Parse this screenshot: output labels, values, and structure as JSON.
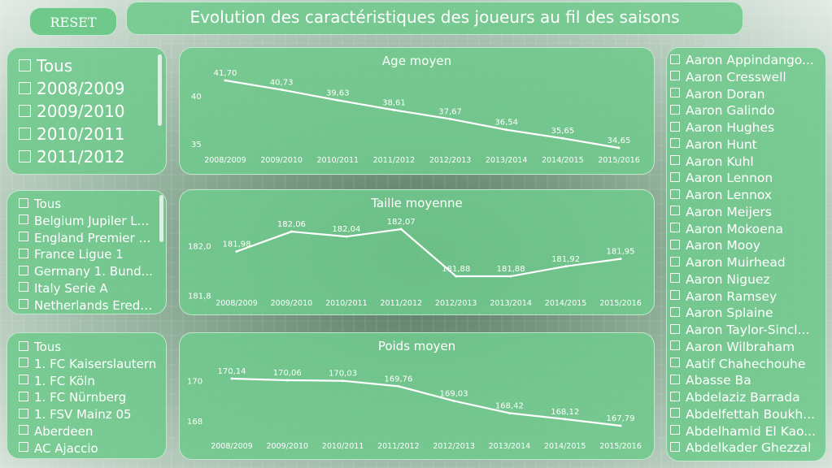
{
  "reset_label": "RESET",
  "title": "Evolution des caractéristiques des joueurs au fil des saisons",
  "seasons": [
    "Tous",
    "2008/2009",
    "2009/2010",
    "2010/2011",
    "2011/2012"
  ],
  "leagues": [
    "Tous",
    "Belgium Jupiler Le...",
    "England Premier L...",
    "France Ligue 1",
    "Germany 1. Bund...",
    "Italy Serie A",
    "Netherlands Eredi..."
  ],
  "clubs": [
    "Tous",
    "1. FC Kaiserslautern",
    "1. FC Köln",
    "1. FC Nürnberg",
    "1. FSV Mainz 05",
    "Aberdeen",
    "AC Ajaccio"
  ],
  "players": [
    "Aaron Appindango...",
    "Aaron Cresswell",
    "Aaron Doran",
    "Aaron Galindo",
    "Aaron Hughes",
    "Aaron Hunt",
    "Aaron Kuhl",
    "Aaron Lennon",
    "Aaron Lennox",
    "Aaron Meijers",
    "Aaron Mokoena",
    "Aaron Mooy",
    "Aaron Muirhead",
    "Aaron Niguez",
    "Aaron Ramsey",
    "Aaron Splaine",
    "Aaron Taylor-Sincl...",
    "Aaron Wilbraham",
    "Aatif Chahechouhe",
    "Abasse Ba",
    "Abdelaziz Barrada",
    "Abdelfettah Boukh...",
    "Abdelhamid El Kao...",
    "Abdelkader Ghezzal"
  ],
  "colors": {
    "panel": "#70c98c",
    "line": "#ffffff"
  },
  "chart_data": [
    {
      "type": "line",
      "title": "Age moyen",
      "categories": [
        "2008/2009",
        "2009/2010",
        "2010/2011",
        "2011/2012",
        "2012/2013",
        "2013/2014",
        "2014/2015",
        "2015/2016"
      ],
      "values": [
        41.7,
        40.73,
        39.63,
        38.61,
        37.67,
        36.54,
        35.65,
        34.65
      ],
      "labels": [
        "41,70",
        "40,73",
        "39,63",
        "38,61",
        "37,67",
        "36,54",
        "35,65",
        "34,65"
      ],
      "yticks": [
        "40",
        "35"
      ],
      "ytick_values": [
        40,
        35
      ],
      "grid": false
    },
    {
      "type": "line",
      "title": "Taille moyenne",
      "categories": [
        "2008/2009",
        "2009/2010",
        "2010/2011",
        "2011/2012",
        "2012/2013",
        "2013/2014",
        "2014/2015",
        "2015/2016"
      ],
      "values": [
        181.98,
        182.06,
        182.04,
        182.07,
        181.88,
        181.88,
        181.92,
        181.95
      ],
      "labels": [
        "181,98",
        "182,06",
        "182,04",
        "182,07",
        "181,88",
        "181,88",
        "181,92",
        "181,95"
      ],
      "yticks": [
        "182,0",
        "181,8"
      ],
      "ytick_values": [
        182.0,
        181.8
      ],
      "grid": false
    },
    {
      "type": "line",
      "title": "Poids moyen",
      "categories": [
        "2008/2009",
        "2009/2010",
        "2010/2011",
        "2011/2012",
        "2012/2013",
        "2013/2014",
        "2014/2015",
        "2015/2016"
      ],
      "values": [
        170.14,
        170.06,
        170.03,
        169.76,
        169.03,
        168.42,
        168.12,
        167.79
      ],
      "labels": [
        "170,14",
        "170,06",
        "170,03",
        "169,76",
        "169,03",
        "168,42",
        "168,12",
        "167,79"
      ],
      "yticks": [
        "170",
        "168"
      ],
      "ytick_values": [
        170,
        168
      ],
      "grid": false
    }
  ]
}
